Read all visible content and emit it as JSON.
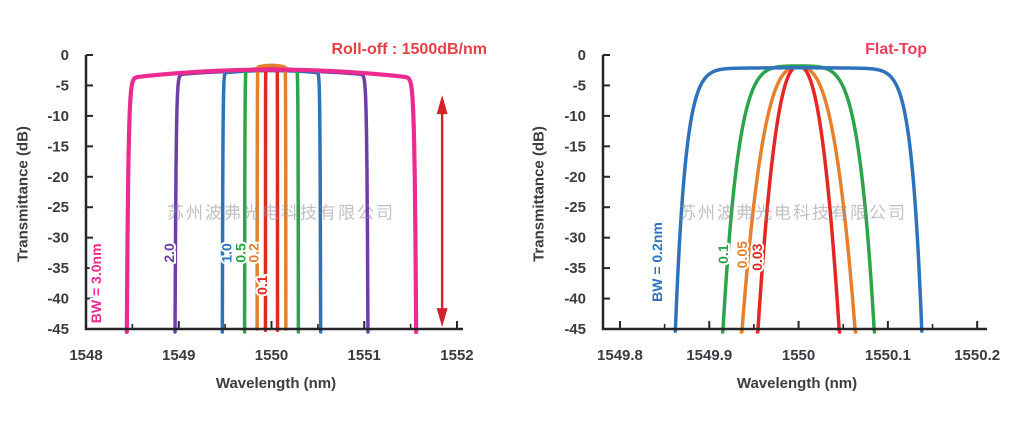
{
  "watermark": "苏州波弗光电科技有限公司",
  "chart_data": [
    {
      "id": "rolloff-chart",
      "type": "line",
      "title": "Roll-off : 1500dB/nm",
      "title_color": "#e73f48",
      "xlabel": "Wavelength (nm)",
      "ylabel": "Transmittance (dB)",
      "xlim": [
        1548,
        1552.065
      ],
      "ylim": [
        -45,
        0
      ],
      "x_tick_values": [
        1548,
        1549,
        1550,
        1551,
        1552
      ],
      "x_tick_labels": [
        "1548",
        "1549",
        "1550",
        "1551",
        "1552"
      ],
      "x_minor_ticks": [
        1548.5,
        1549.5,
        1550.5,
        1551.5
      ],
      "y_tick_values": [
        0,
        -5,
        -10,
        -15,
        -20,
        -25,
        -30,
        -35,
        -40,
        -45
      ],
      "y_tick_labels": [
        "0",
        "-5",
        "-10",
        "-15",
        "-20",
        "-25",
        "-30",
        "-35",
        "-40",
        "-45"
      ],
      "center_wavelength_nm": 1550,
      "series": [
        {
          "label": "BW = 3.0nm",
          "bandwidth_nm": 3.0,
          "color": "#eb2b8f",
          "half_width_base_nm": 1.56,
          "top_db": -2.4,
          "dome_db": 1.4,
          "edge_order": 100,
          "label_pos": {
            "wavelength_nm": 1548.16,
            "transmittance_db": -37.5
          }
        },
        {
          "label": "2.0",
          "bandwidth_nm": 2.0,
          "color": "#6d3fa4",
          "half_width_base_nm": 1.04,
          "top_db": -2.55,
          "dome_db": 0.7,
          "edge_order": 100,
          "label_pos": {
            "wavelength_nm": 1548.95,
            "transmittance_db": -32.5
          }
        },
        {
          "label": "1.0",
          "bandwidth_nm": 1.0,
          "color": "#2e73ba",
          "half_width_base_nm": 0.53,
          "top_db": -2.55,
          "dome_db": 0.4,
          "edge_order": 100,
          "label_pos": {
            "wavelength_nm": 1549.57,
            "transmittance_db": -32.5
          }
        },
        {
          "label": "0.5",
          "bandwidth_nm": 0.5,
          "color": "#2da34c",
          "half_width_base_nm": 0.29,
          "top_db": -2.2,
          "dome_db": 0.3,
          "edge_order": 100,
          "label_pos": {
            "wavelength_nm": 1549.72,
            "transmittance_db": -32.5
          }
        },
        {
          "label": "0.2",
          "bandwidth_nm": 0.2,
          "color": "#e5812e",
          "half_width_base_nm": 0.155,
          "top_db": -1.7,
          "dome_db": 0.3,
          "edge_order": 100,
          "label_pos": {
            "wavelength_nm": 1549.86,
            "transmittance_db": -32.5
          }
        },
        {
          "label": "0.1",
          "bandwidth_nm": 0.1,
          "color": "#e32724",
          "half_width_base_nm": 0.065,
          "top_db": -1.9,
          "dome_db": 0.3,
          "edge_order": 100,
          "label_pos": {
            "wavelength_nm": 1549.95,
            "transmittance_db": -37.8
          }
        }
      ],
      "draw_order": [
        1,
        2,
        3,
        5,
        4,
        0
      ],
      "annotation_arrow": {
        "type": "double_arrow",
        "wavelength_nm": 1551.84,
        "from_db": -6.6,
        "to_db": -44.7,
        "color": "#d6202c"
      }
    },
    {
      "id": "flattop-chart",
      "type": "line",
      "title": "Flat-Top",
      "title_color": "#ed3f5b",
      "xlabel": "Wavelength (nm)",
      "ylabel": "Transmittance (dB)",
      "xlim": [
        1549.781,
        1550.211
      ],
      "ylim": [
        -45,
        0
      ],
      "x_tick_values": [
        1549.8,
        1549.9,
        1550,
        1550.1,
        1550.2
      ],
      "x_tick_labels": [
        "1549.8",
        "1549.9",
        "1550",
        "1550.1",
        "1550.2"
      ],
      "x_minor_ticks": [
        1549.85,
        1549.95,
        1550.05,
        1550.15
      ],
      "y_tick_values": [
        0,
        -5,
        -10,
        -15,
        -20,
        -25,
        -30,
        -35,
        -40,
        -45
      ],
      "y_tick_labels": [
        "0",
        "-5",
        "-10",
        "-15",
        "-20",
        "-25",
        "-30",
        "-35",
        "-40",
        "-45"
      ],
      "center_wavelength_nm": 1550,
      "series": [
        {
          "label": "BW = 0.2nm",
          "bandwidth_nm": 0.2,
          "color": "#2e73ba",
          "half_width_base_nm": 0.138,
          "top_db": -2.1,
          "dome_db": 0.25,
          "edge_order": 12,
          "label_pos": {
            "wavelength_nm": 1549.847,
            "transmittance_db": -34.0
          }
        },
        {
          "label": "0.1",
          "bandwidth_nm": 0.1,
          "color": "#2da34c",
          "half_width_base_nm": 0.085,
          "top_db": -1.8,
          "dome_db": 1.2,
          "edge_order": 5,
          "label_pos": {
            "wavelength_nm": 1549.921,
            "transmittance_db": -32.7
          }
        },
        {
          "label": "0.05",
          "bandwidth_nm": 0.05,
          "color": "#e5812e",
          "half_width_base_nm": 0.064,
          "top_db": -2.0,
          "dome_db": 1.5,
          "edge_order": 2.8,
          "label_pos": {
            "wavelength_nm": 1549.942,
            "transmittance_db": -32.8
          }
        },
        {
          "label": "0.03",
          "bandwidth_nm": 0.03,
          "color": "#e32724",
          "half_width_base_nm": 0.046,
          "top_db": -1.85,
          "dome_db": 1.5,
          "edge_order": 2.4,
          "label_pos": {
            "wavelength_nm": 1549.959,
            "transmittance_db": -33.2
          }
        }
      ],
      "draw_order": [
        2,
        3,
        1,
        0
      ]
    }
  ]
}
